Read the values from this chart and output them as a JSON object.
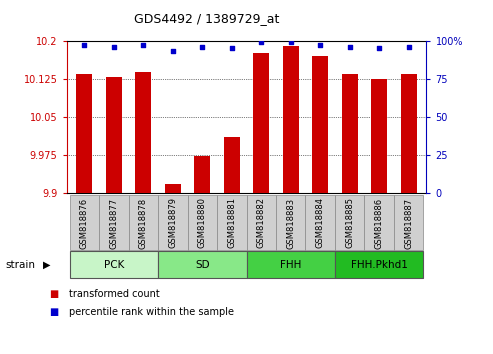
{
  "title": "GDS4492 / 1389729_at",
  "samples": [
    "GSM818876",
    "GSM818877",
    "GSM818878",
    "GSM818879",
    "GSM818880",
    "GSM818881",
    "GSM818882",
    "GSM818883",
    "GSM818884",
    "GSM818885",
    "GSM818886",
    "GSM818887"
  ],
  "red_values": [
    10.135,
    10.128,
    10.138,
    9.918,
    9.972,
    10.01,
    10.175,
    10.19,
    10.17,
    10.134,
    10.124,
    10.134
  ],
  "blue_values": [
    97,
    96,
    97,
    93,
    96,
    95,
    99,
    99,
    97,
    96,
    95,
    96
  ],
  "ymin": 9.9,
  "ymax": 10.2,
  "y_ticks": [
    9.9,
    9.975,
    10.05,
    10.125,
    10.2
  ],
  "y_tick_labels": [
    "9.9",
    "9.975",
    "10.05",
    "10.125",
    "10.2"
  ],
  "y_right_ticks": [
    0,
    25,
    50,
    75,
    100
  ],
  "y_right_labels": [
    "0",
    "25",
    "50",
    "75",
    "100%"
  ],
  "groups": [
    {
      "label": "PCK",
      "start": 0,
      "end": 2,
      "color": "#c8f5c8"
    },
    {
      "label": "SD",
      "start": 3,
      "end": 5,
      "color": "#88e888"
    },
    {
      "label": "FHH",
      "start": 6,
      "end": 8,
      "color": "#44d044"
    },
    {
      "label": "FHH.Pkhd1",
      "start": 9,
      "end": 11,
      "color": "#22bb22"
    }
  ],
  "strain_label": "strain",
  "legend_red": "transformed count",
  "legend_blue": "percentile rank within the sample",
  "bar_color": "#cc0000",
  "dot_color": "#0000cc",
  "bg_xticklabels": "#d0d0d0",
  "left_axis_color": "#cc0000",
  "right_axis_color": "#0000bb"
}
